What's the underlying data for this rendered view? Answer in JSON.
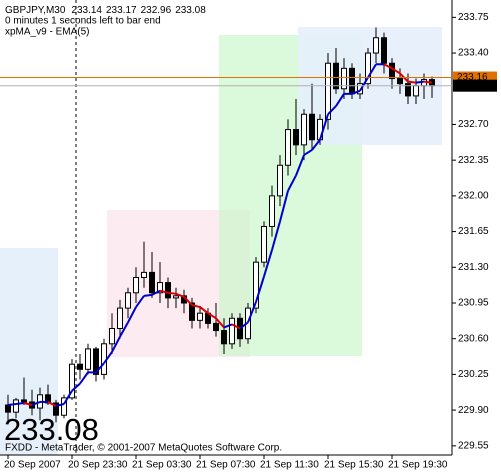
{
  "chart_data": {
    "type": "candlestick",
    "symbol": "GBPJPY,M30",
    "timer_text": "0 minutes 1 seconds left to bar end",
    "footer": "FXDD - MetaTrader, © 2001-2007 MetaQuotes Software Corp.",
    "categories": [
      "20 Sep 2007",
      null,
      null,
      null,
      null,
      null,
      null,
      null,
      "20 Sep 23:30",
      null,
      null,
      null,
      null,
      null,
      null,
      null,
      "21 Sep 03:30",
      null,
      null,
      null,
      null,
      null,
      null,
      null,
      "21 Sep 07:30",
      null,
      null,
      null,
      null,
      null,
      null,
      null,
      "21 Sep 11:30",
      null,
      null,
      null,
      null,
      null,
      null,
      null,
      "21 Sep 15:30",
      null,
      null,
      null,
      null,
      null,
      null,
      null,
      "21 Sep 19:30",
      null,
      null,
      null,
      null,
      null
    ],
    "open": [
      229.95,
      229.88,
      230.0,
      229.98,
      229.92,
      230.05,
      229.97,
      229.85,
      230.02,
      230.35,
      230.3,
      230.5,
      230.25,
      230.55,
      230.7,
      230.9,
      231.05,
      231.2,
      231.25,
      231.05,
      231.15,
      231.0,
      231.02,
      230.95,
      230.78,
      230.85,
      230.75,
      230.68,
      230.55,
      230.8,
      230.6,
      230.9,
      231.35,
      231.7,
      232.0,
      232.3,
      232.65,
      232.5,
      232.8,
      232.55,
      232.75,
      233.3,
      233.05,
      233.25,
      233.0,
      233.1,
      233.4,
      233.55,
      233.3,
      233.15,
      233.1,
      232.98,
      233.08,
      233.14
    ],
    "high": [
      230.05,
      230.02,
      230.22,
      230.1,
      230.12,
      230.15,
      230.0,
      230.05,
      230.4,
      230.45,
      230.55,
      230.52,
      230.6,
      230.85,
      230.98,
      231.1,
      231.3,
      231.55,
      231.45,
      231.35,
      231.2,
      231.1,
      231.08,
      231.0,
      230.92,
      230.9,
      230.95,
      230.8,
      230.85,
      230.85,
      230.95,
      231.4,
      231.75,
      232.1,
      232.4,
      232.75,
      232.95,
      232.85,
      233.1,
      232.8,
      233.4,
      233.45,
      233.35,
      233.3,
      233.2,
      233.45,
      233.65,
      233.6,
      233.35,
      233.25,
      233.2,
      233.15,
      233.2,
      233.17
    ],
    "low": [
      229.8,
      229.82,
      229.95,
      229.85,
      229.8,
      229.95,
      229.78,
      229.82,
      230.0,
      230.2,
      230.25,
      230.18,
      230.2,
      230.45,
      230.6,
      230.8,
      230.95,
      231.1,
      231.0,
      230.95,
      230.9,
      230.9,
      230.85,
      230.7,
      230.7,
      230.7,
      230.62,
      230.45,
      230.5,
      230.52,
      230.55,
      230.85,
      231.3,
      231.6,
      231.9,
      232.2,
      232.4,
      232.35,
      232.45,
      232.5,
      232.65,
      233.0,
      232.95,
      232.95,
      232.95,
      233.05,
      233.3,
      233.2,
      233.05,
      233.0,
      232.9,
      232.9,
      232.95,
      232.96
    ],
    "close": [
      229.88,
      230.0,
      229.98,
      229.92,
      230.05,
      229.97,
      229.85,
      230.02,
      230.35,
      230.3,
      230.5,
      230.25,
      230.55,
      230.7,
      230.9,
      231.05,
      231.2,
      231.25,
      231.05,
      231.15,
      231.0,
      231.02,
      230.95,
      230.78,
      230.85,
      230.75,
      230.68,
      230.55,
      230.8,
      230.6,
      230.9,
      231.35,
      231.7,
      232.0,
      232.3,
      232.65,
      232.5,
      232.8,
      232.55,
      232.75,
      233.3,
      233.05,
      233.25,
      233.0,
      233.1,
      233.4,
      233.55,
      233.3,
      233.15,
      233.1,
      232.98,
      233.08,
      233.14,
      233.08
    ],
    "ema": {
      "name": "xpMA_v9 - EMA(5)",
      "color": "#0000cc",
      "down_color": "#dd0000",
      "legend_color": "#ff9900",
      "values": [
        229.95,
        229.96,
        229.97,
        229.95,
        229.98,
        229.98,
        229.94,
        229.96,
        230.09,
        230.16,
        230.27,
        230.27,
        230.36,
        230.47,
        230.62,
        230.76,
        230.91,
        231.02,
        231.03,
        231.07,
        231.05,
        231.04,
        231.01,
        230.93,
        230.91,
        230.85,
        230.8,
        230.71,
        230.74,
        230.7,
        230.76,
        230.96,
        231.21,
        231.47,
        231.75,
        232.05,
        232.2,
        232.4,
        232.45,
        232.55,
        232.8,
        232.88,
        233.0,
        233.0,
        233.03,
        233.16,
        233.29,
        233.29,
        233.25,
        233.2,
        233.12,
        233.11,
        233.12,
        233.11
      ]
    },
    "ask_line": {
      "value": 233.16,
      "label": "233.16",
      "color": "#e07000"
    },
    "bid_line": {
      "value": 233.08,
      "label": "233.08",
      "color": "#b0b0b0"
    },
    "big_price_color": "#66ff00",
    "ylim": [
      229.46,
      233.92
    ],
    "yticks": [
      229.55,
      {
        "value": 229.9,
        "label": "229.90"
      },
      230.25,
      {
        "value": 230.6,
        "label": "230.60"
      },
      230.95,
      {
        "value": 231.3,
        "label": "231.30"
      },
      231.65,
      {
        "value": 232,
        "label": "232.00"
      },
      232.35,
      {
        "value": 232.7,
        "label": "232.70"
      },
      {
        "value": 233.4,
        "label": "233.40"
      },
      233.75
    ]
  }
}
